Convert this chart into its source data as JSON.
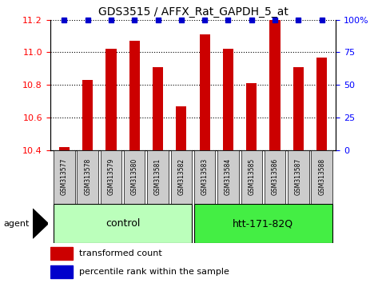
{
  "title": "GDS3515 / AFFX_Rat_GAPDH_5_at",
  "samples": [
    "GSM313577",
    "GSM313578",
    "GSM313579",
    "GSM313580",
    "GSM313581",
    "GSM313582",
    "GSM313583",
    "GSM313584",
    "GSM313585",
    "GSM313586",
    "GSM313587",
    "GSM313588"
  ],
  "bar_values": [
    10.42,
    10.83,
    11.02,
    11.07,
    10.91,
    10.67,
    11.11,
    11.02,
    10.81,
    11.2,
    10.91,
    10.97
  ],
  "bar_color": "#cc0000",
  "dot_color": "#0000cc",
  "ylim_left": [
    10.4,
    11.2
  ],
  "ylim_right": [
    0,
    100
  ],
  "yticks_left": [
    10.4,
    10.6,
    10.8,
    11.0,
    11.2
  ],
  "yticks_right": [
    0,
    25,
    50,
    75,
    100
  ],
  "ytick_labels_right": [
    "0",
    "25",
    "50",
    "75",
    "100%"
  ],
  "groups": [
    {
      "label": "control",
      "start": 0,
      "end": 5,
      "color": "#bbffbb"
    },
    {
      "label": "htt-171-82Q",
      "start": 6,
      "end": 11,
      "color": "#44ee44"
    }
  ],
  "agent_label": "agent",
  "legend_bar_label": "transformed count",
  "legend_dot_label": "percentile rank within the sample",
  "bar_width": 0.45,
  "sample_bg_color": "#cccccc"
}
